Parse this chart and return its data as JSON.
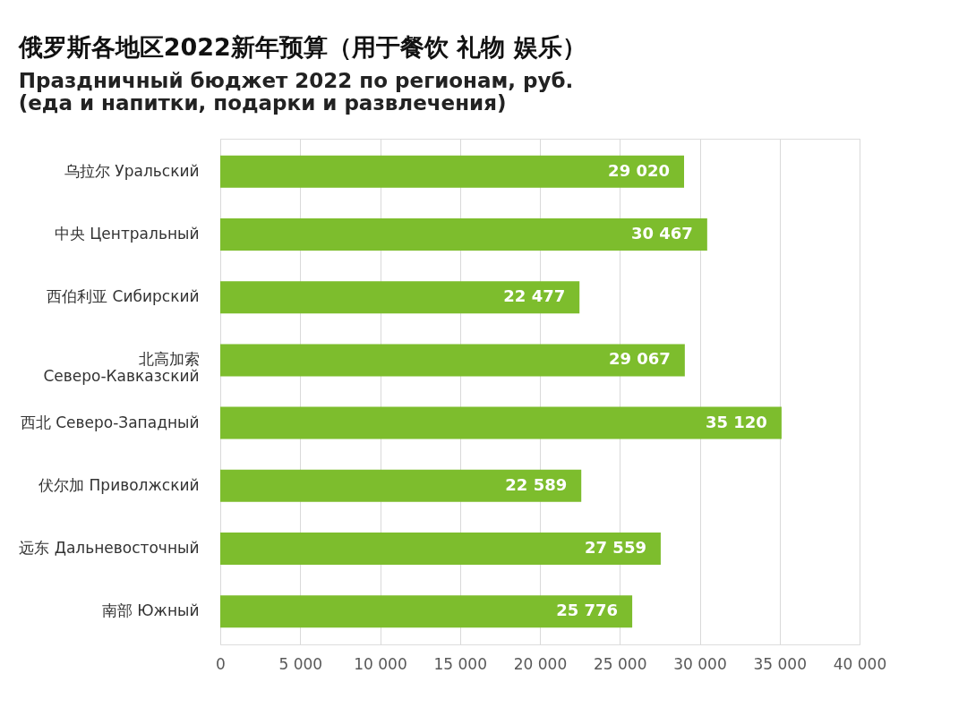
{
  "chart_data": {
    "type": "bar",
    "orientation": "horizontal",
    "title": "俄罗斯各地区2022新年预算（用于餐饮 礼物 娱乐）",
    "subtitle": "Праздничный бюджет 2022 по регионам, руб.\n(еда и напитки, подарки и развлечения)",
    "categories": [
      "乌拉尔 Уральский",
      "中央 Центральный",
      "西伯利亚 Сибирский",
      "北高加索\nСеверо-Кавказский",
      "西北 Северо-Западный",
      "伏尔加 Приволжский",
      "远东 Дальневосточный",
      "南部 Южный"
    ],
    "values": [
      29020,
      30467,
      22477,
      29067,
      35120,
      22589,
      27559,
      25776
    ],
    "value_labels": [
      "29 020",
      "30 467",
      "22 477",
      "29 067",
      "35 120",
      "22 589",
      "27 559",
      "25 776"
    ],
    "color": "#7dbd2d",
    "xlim": [
      0,
      40000
    ],
    "xticks": [
      0,
      {
        "value": 5000,
        "label": "5 000"
      },
      {
        "value": 10000,
        "label": "10 000"
      },
      {
        "value": 15000,
        "label": "15 000"
      },
      {
        "value": 20000,
        "label": "20 000"
      },
      {
        "value": 25000,
        "label": "25 000"
      },
      {
        "value": 30000,
        "label": "30 000"
      },
      {
        "value": 35000,
        "label": "35 000"
      },
      {
        "value": 40000,
        "label": "40 000"
      }
    ],
    "grid": "x"
  }
}
